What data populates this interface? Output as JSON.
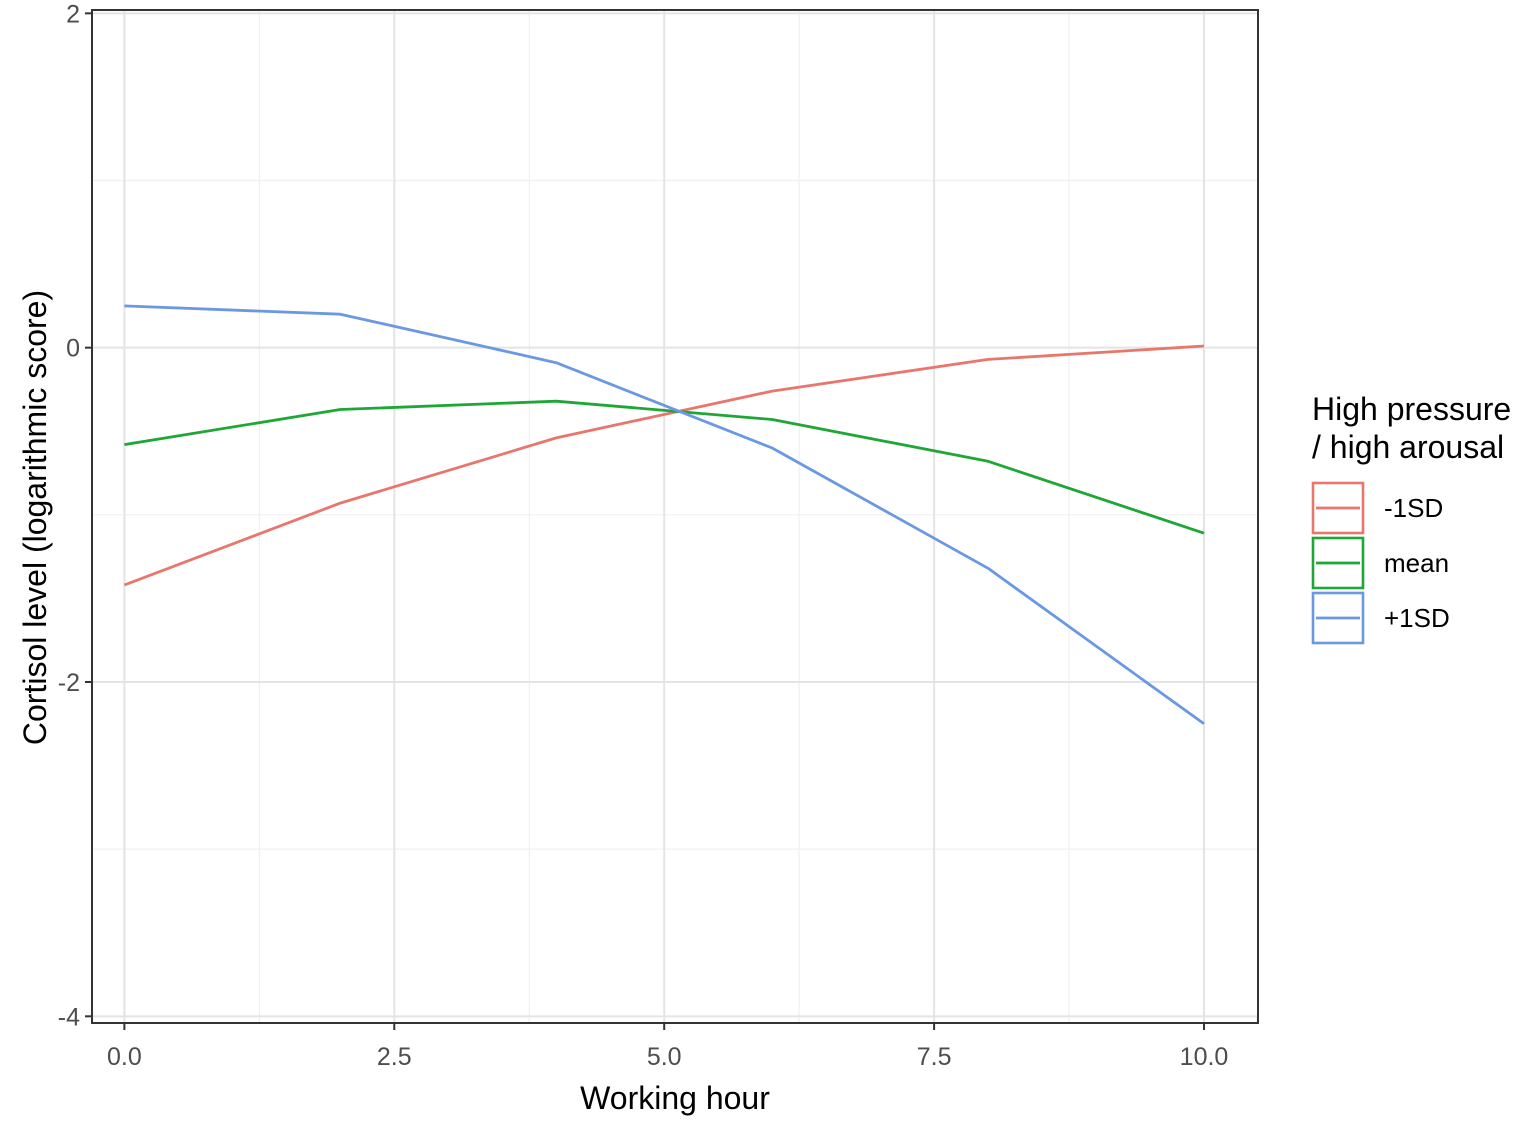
{
  "chart_data": {
    "type": "line",
    "xlabel": "Working hour",
    "ylabel": "Cortisol level (logarithmic score)",
    "xlim": [
      -0.3,
      10.5
    ],
    "ylim": [
      -4,
      2
    ],
    "x_ticks": [
      0.0,
      2.5,
      5.0,
      7.5,
      10.0
    ],
    "x_tick_labels": [
      "0.0",
      "2.5",
      "5.0",
      "7.5",
      "10.0"
    ],
    "y_ticks": [
      -4,
      -2,
      0,
      2
    ],
    "y_tick_labels": [
      "-4",
      "-2",
      "0",
      "2"
    ],
    "grid": true,
    "legend": {
      "title_lines": [
        "High pressure",
        "/ high arousal"
      ],
      "placement": "right"
    },
    "x": [
      0,
      2,
      4,
      6,
      8,
      10
    ],
    "series": [
      {
        "name": "-1SD",
        "color": "#e8766d",
        "values": [
          -1.42,
          -0.93,
          -0.54,
          -0.26,
          -0.07,
          0.01
        ]
      },
      {
        "name": "mean",
        "color": "#20a637",
        "values": [
          -0.58,
          -0.37,
          -0.32,
          -0.43,
          -0.68,
          -1.11
        ]
      },
      {
        "name": "+1SD",
        "color": "#6a98e3",
        "values": [
          0.25,
          0.2,
          -0.09,
          -0.6,
          -1.32,
          -2.25
        ]
      }
    ]
  }
}
